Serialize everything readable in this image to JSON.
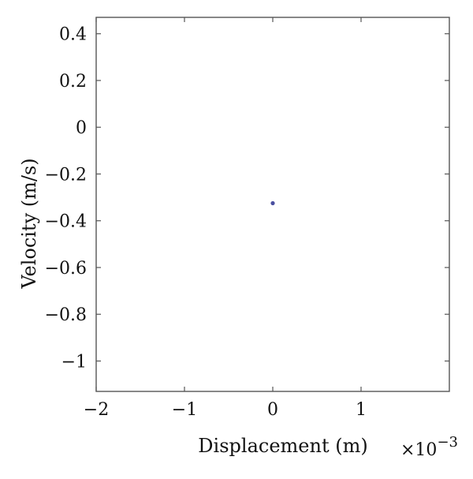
{
  "chart_data": {
    "type": "scatter",
    "title": "",
    "xlabel": "Displacement (m)",
    "ylabel": "Velocity (m/s)",
    "x_multiplier_base": "×10",
    "x_multiplier_exp": "−3",
    "xlim": [
      -2.0,
      2.0
    ],
    "ylim": [
      -1.13,
      0.47
    ],
    "x_ticks": [
      -2,
      -1,
      0,
      1
    ],
    "x_tick_labels": [
      "−2",
      "−1",
      "0",
      "1"
    ],
    "y_ticks": [
      0.4,
      0.2,
      0,
      -0.2,
      -0.4,
      -0.6,
      -0.8,
      -1
    ],
    "y_tick_labels": [
      "0.4",
      "0.2",
      "0",
      "−0.2",
      "−0.4",
      "−0.6",
      "−0.8",
      "−1"
    ],
    "grid": false,
    "series": [
      {
        "color": "#4a4fa0",
        "points": [
          {
            "x": -2e-05,
            "y": -0.325
          }
        ]
      }
    ]
  }
}
